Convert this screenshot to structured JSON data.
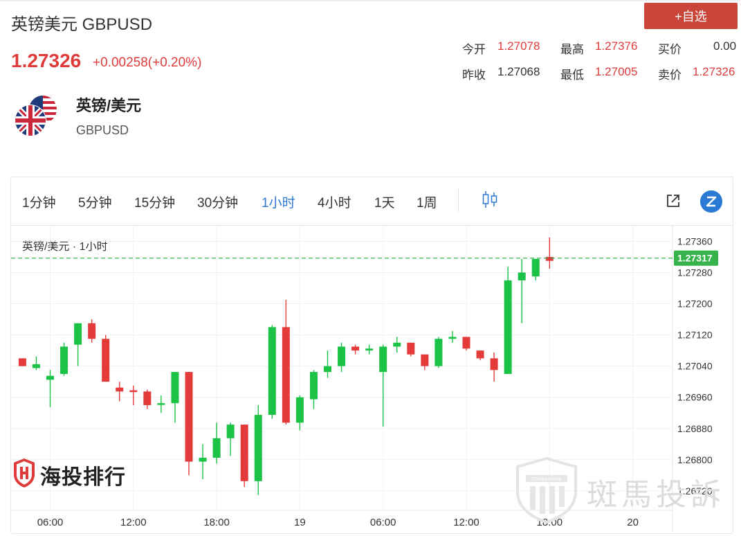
{
  "header": {
    "title": "英镑美元 GBPUSD",
    "price": "1.27326",
    "change": "+0.00258(+0.20%)",
    "add_button": "+自选"
  },
  "stats": [
    {
      "label": "今开",
      "value": "1.27078",
      "tone": "up"
    },
    {
      "label": "最高",
      "value": "1.27376",
      "tone": "up"
    },
    {
      "label": "买价",
      "value": "0.00",
      "tone": "neutral"
    },
    {
      "label": "昨收",
      "value": "1.27068",
      "tone": "neutral"
    },
    {
      "label": "最低",
      "value": "1.27005",
      "tone": "up"
    },
    {
      "label": "卖价",
      "value": "1.27326",
      "tone": "up"
    }
  ],
  "instrument": {
    "name_cn": "英镑/美元",
    "name_en": "GBPUSD"
  },
  "toolbar": {
    "timeframes": [
      "1分钟",
      "5分钟",
      "15分钟",
      "30分钟",
      "1小时",
      "4小时",
      "1天",
      "1周"
    ],
    "active": "1小时",
    "chart_type_icon": "candlestick-icon",
    "external_icon": "external-link-icon",
    "brand_icon": "z-logo-icon"
  },
  "colors": {
    "up": "#1ac246",
    "down": "#e43a3a",
    "price_line": "#36b34a",
    "active_tab": "#2a7ad3"
  },
  "branding": {
    "logo_text": "海投排行",
    "watermark_text": "斑馬投訴",
    "watermark_badge": "ZEBRA RANK"
  },
  "chart_data": {
    "type": "candlestick",
    "legend": "英镑/美元 · 1小时",
    "ylim": [
      1.2667,
      1.274
    ],
    "yticks": [
      "1.27360",
      "1.27280",
      "1.27200",
      "1.27120",
      "1.27040",
      "1.26960",
      "1.26880",
      "1.26800",
      "1.26720"
    ],
    "xticks": [
      "06:00",
      "12:00",
      "18:00",
      "19",
      "06:00",
      "12:00",
      "18:00",
      "20"
    ],
    "last_price": "1.27317",
    "last_price_value": 1.27317,
    "grid": true,
    "candles": [
      {
        "o": 1.2706,
        "h": 1.2706,
        "l": 1.2704,
        "c": 1.2704
      },
      {
        "o": 1.27035,
        "h": 1.27065,
        "l": 1.2703,
        "c": 1.27045
      },
      {
        "o": 1.27005,
        "h": 1.2703,
        "l": 1.26935,
        "c": 1.27015
      },
      {
        "o": 1.2702,
        "h": 1.271,
        "l": 1.27015,
        "c": 1.2709
      },
      {
        "o": 1.27095,
        "h": 1.2715,
        "l": 1.2704,
        "c": 1.2715
      },
      {
        "o": 1.2715,
        "h": 1.2716,
        "l": 1.271,
        "c": 1.2711
      },
      {
        "o": 1.2711,
        "h": 1.2712,
        "l": 1.27,
        "c": 1.27
      },
      {
        "o": 1.26985,
        "h": 1.27,
        "l": 1.2695,
        "c": 1.26975
      },
      {
        "o": 1.26978,
        "h": 1.2699,
        "l": 1.2694,
        "c": 1.26975
      },
      {
        "o": 1.26975,
        "h": 1.2698,
        "l": 1.2693,
        "c": 1.2694
      },
      {
        "o": 1.26945,
        "h": 1.26965,
        "l": 1.2692,
        "c": 1.26945
      },
      {
        "o": 1.26945,
        "h": 1.27025,
        "l": 1.26895,
        "c": 1.27025
      },
      {
        "o": 1.27025,
        "h": 1.27025,
        "l": 1.2676,
        "c": 1.26795
      },
      {
        "o": 1.26795,
        "h": 1.2684,
        "l": 1.2675,
        "c": 1.26805
      },
      {
        "o": 1.26805,
        "h": 1.26895,
        "l": 1.2679,
        "c": 1.26855
      },
      {
        "o": 1.26855,
        "h": 1.26895,
        "l": 1.2681,
        "c": 1.2689
      },
      {
        "o": 1.2689,
        "h": 1.2689,
        "l": 1.2673,
        "c": 1.26745
      },
      {
        "o": 1.26745,
        "h": 1.2694,
        "l": 1.2671,
        "c": 1.26915
      },
      {
        "o": 1.26915,
        "h": 1.27145,
        "l": 1.26905,
        "c": 1.2714
      },
      {
        "o": 1.2714,
        "h": 1.2721,
        "l": 1.2689,
        "c": 1.26895
      },
      {
        "o": 1.26895,
        "h": 1.26965,
        "l": 1.26875,
        "c": 1.2696
      },
      {
        "o": 1.26955,
        "h": 1.2703,
        "l": 1.2693,
        "c": 1.27025
      },
      {
        "o": 1.27025,
        "h": 1.2708,
        "l": 1.2701,
        "c": 1.2704
      },
      {
        "o": 1.2704,
        "h": 1.271,
        "l": 1.27025,
        "c": 1.2709
      },
      {
        "o": 1.2709,
        "h": 1.27095,
        "l": 1.2707,
        "c": 1.2708
      },
      {
        "o": 1.2708,
        "h": 1.27095,
        "l": 1.2707,
        "c": 1.27085
      },
      {
        "o": 1.27025,
        "h": 1.27095,
        "l": 1.26885,
        "c": 1.2709
      },
      {
        "o": 1.2709,
        "h": 1.27115,
        "l": 1.27075,
        "c": 1.271
      },
      {
        "o": 1.271,
        "h": 1.271,
        "l": 1.27065,
        "c": 1.2707
      },
      {
        "o": 1.2707,
        "h": 1.2707,
        "l": 1.2703,
        "c": 1.2704
      },
      {
        "o": 1.2704,
        "h": 1.27115,
        "l": 1.27035,
        "c": 1.2711
      },
      {
        "o": 1.2711,
        "h": 1.2713,
        "l": 1.271,
        "c": 1.27115
      },
      {
        "o": 1.27115,
        "h": 1.27115,
        "l": 1.2708,
        "c": 1.27085
      },
      {
        "o": 1.2708,
        "h": 1.2708,
        "l": 1.27055,
        "c": 1.2706
      },
      {
        "o": 1.2706,
        "h": 1.27075,
        "l": 1.27,
        "c": 1.2703
      },
      {
        "o": 1.2702,
        "h": 1.27295,
        "l": 1.2702,
        "c": 1.2726
      },
      {
        "o": 1.2726,
        "h": 1.27315,
        "l": 1.2715,
        "c": 1.2728
      },
      {
        "o": 1.2727,
        "h": 1.27315,
        "l": 1.2726,
        "c": 1.27315
      },
      {
        "o": 1.2732,
        "h": 1.2737,
        "l": 1.2729,
        "c": 1.2731
      }
    ]
  }
}
